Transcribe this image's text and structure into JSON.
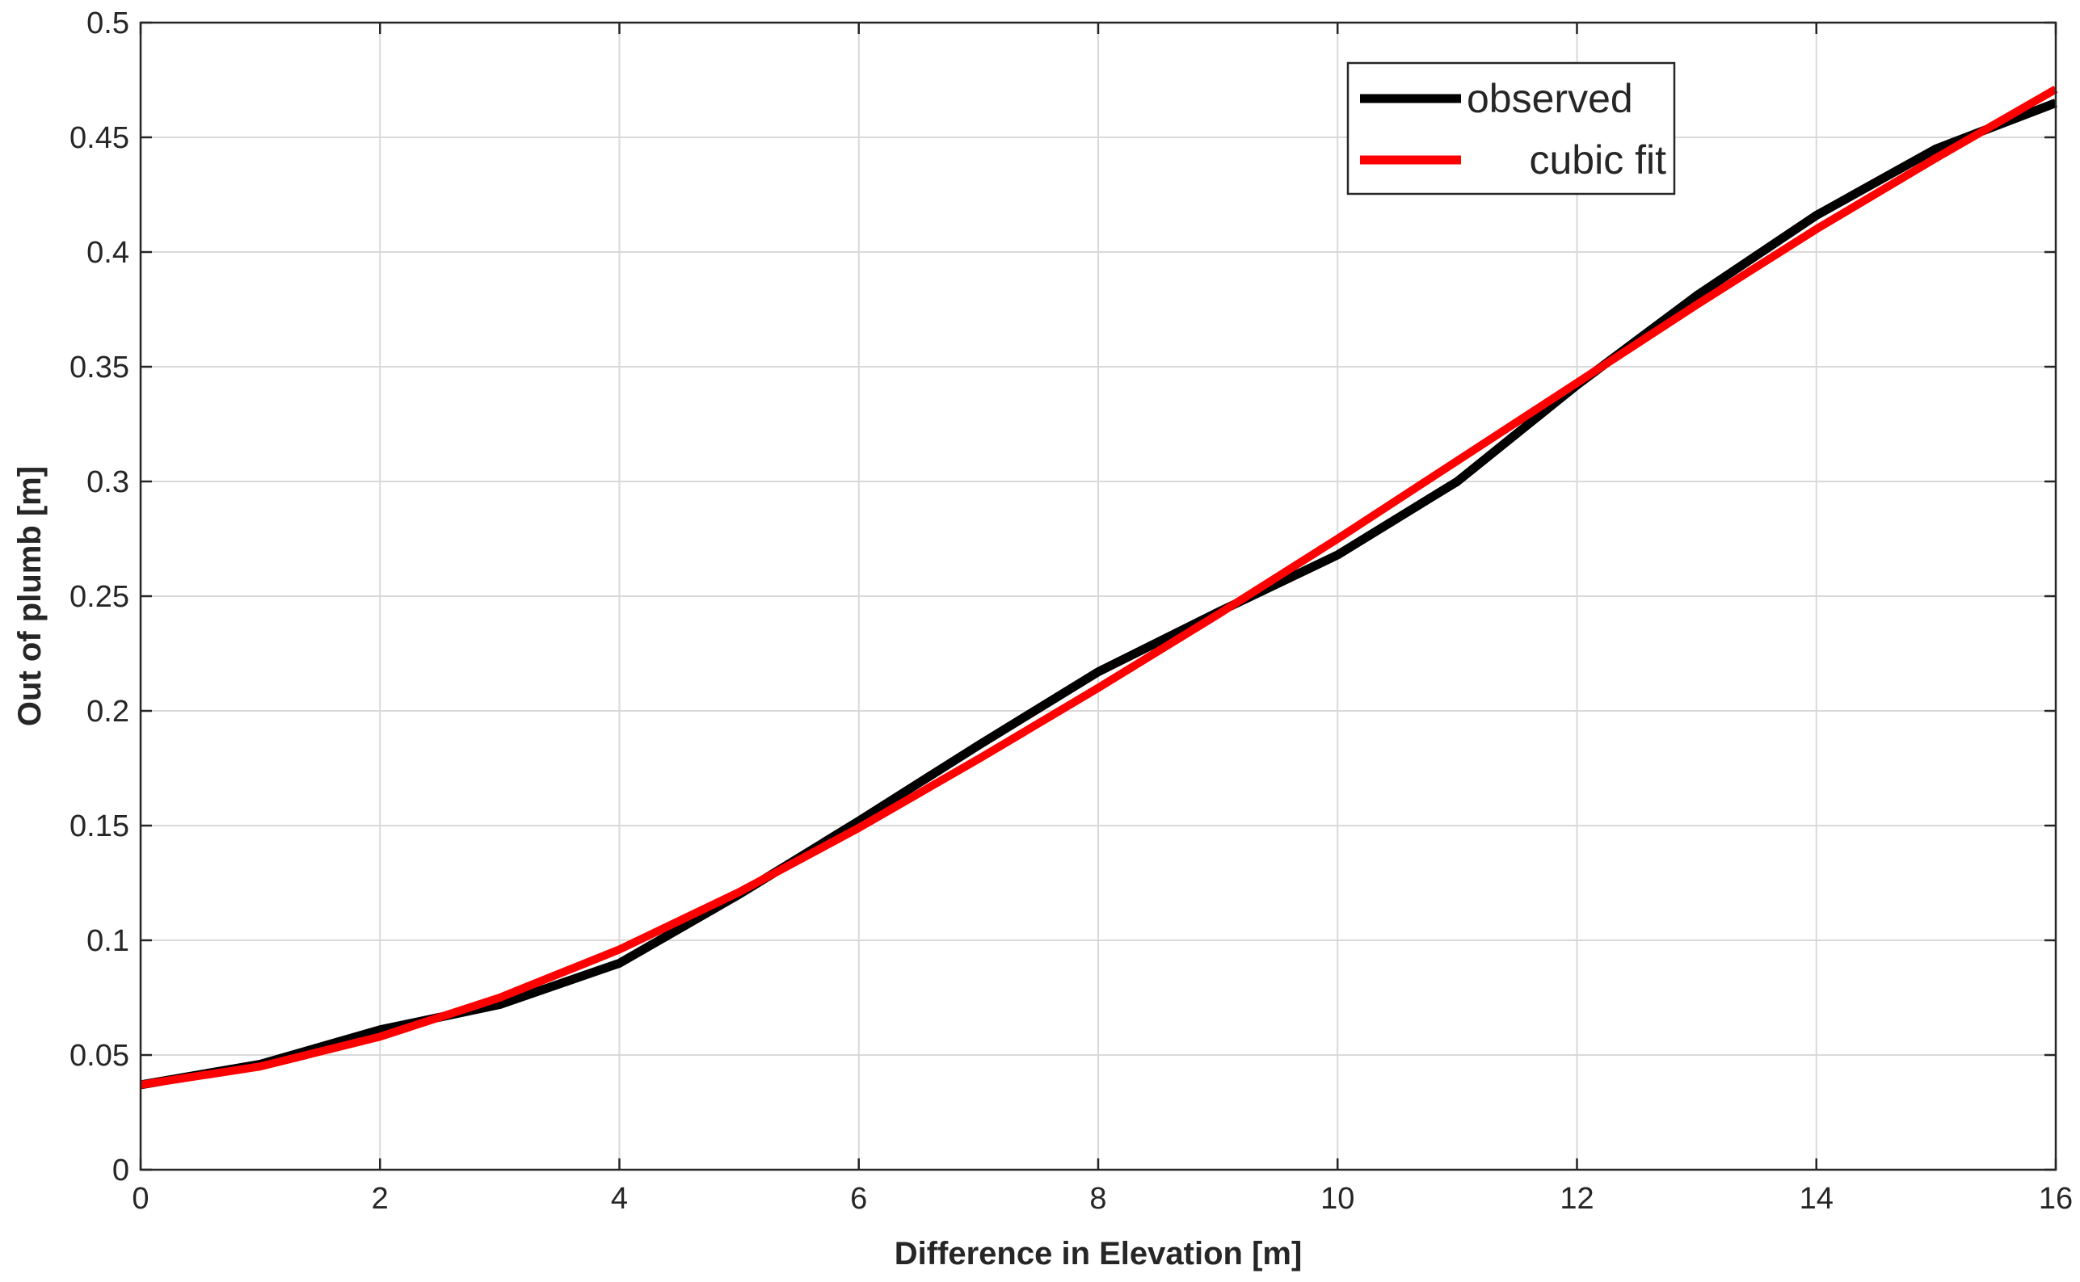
{
  "chart_data": {
    "type": "line",
    "xlabel": "Difference in Elevation [m]",
    "ylabel": "Out of plumb [m]",
    "xlim": [
      0,
      16
    ],
    "ylim": [
      0,
      0.5
    ],
    "xticks": [
      0,
      2,
      4,
      6,
      8,
      10,
      12,
      14,
      16
    ],
    "yticks": [
      0,
      0.05,
      0.1,
      0.15,
      0.2,
      0.25,
      0.3,
      0.35,
      0.4,
      0.45,
      0.5
    ],
    "xtick_labels": [
      "0",
      "2",
      "4",
      "6",
      "8",
      "10",
      "12",
      "14",
      "16"
    ],
    "ytick_labels": [
      "0",
      "0.05",
      "0.1",
      "0.15",
      "0.2",
      "0.25",
      "0.3",
      "0.35",
      "0.4",
      "0.45",
      "0.5"
    ],
    "grid": true,
    "legend_position": "top-right",
    "series": [
      {
        "name": "observed",
        "color": "#000000",
        "x": [
          0,
          1,
          2,
          3,
          4,
          5,
          6,
          7,
          8,
          9,
          10,
          11,
          12,
          13,
          14,
          15,
          16
        ],
        "y": [
          0.037,
          0.046,
          0.061,
          0.072,
          0.09,
          0.12,
          0.152,
          0.185,
          0.217,
          0.243,
          0.268,
          0.3,
          0.342,
          0.381,
          0.416,
          0.445,
          0.465
        ]
      },
      {
        "name": "cubic fit",
        "color": "#ff0000",
        "x": [
          0,
          1,
          2,
          3,
          4,
          5,
          6,
          7,
          8,
          9,
          10,
          11,
          12,
          13,
          14,
          15,
          16
        ],
        "y": [
          0.037,
          0.045,
          0.058,
          0.075,
          0.096,
          0.121,
          0.149,
          0.179,
          0.21,
          0.242,
          0.275,
          0.309,
          0.343,
          0.377,
          0.41,
          0.441,
          0.471
        ]
      }
    ]
  }
}
